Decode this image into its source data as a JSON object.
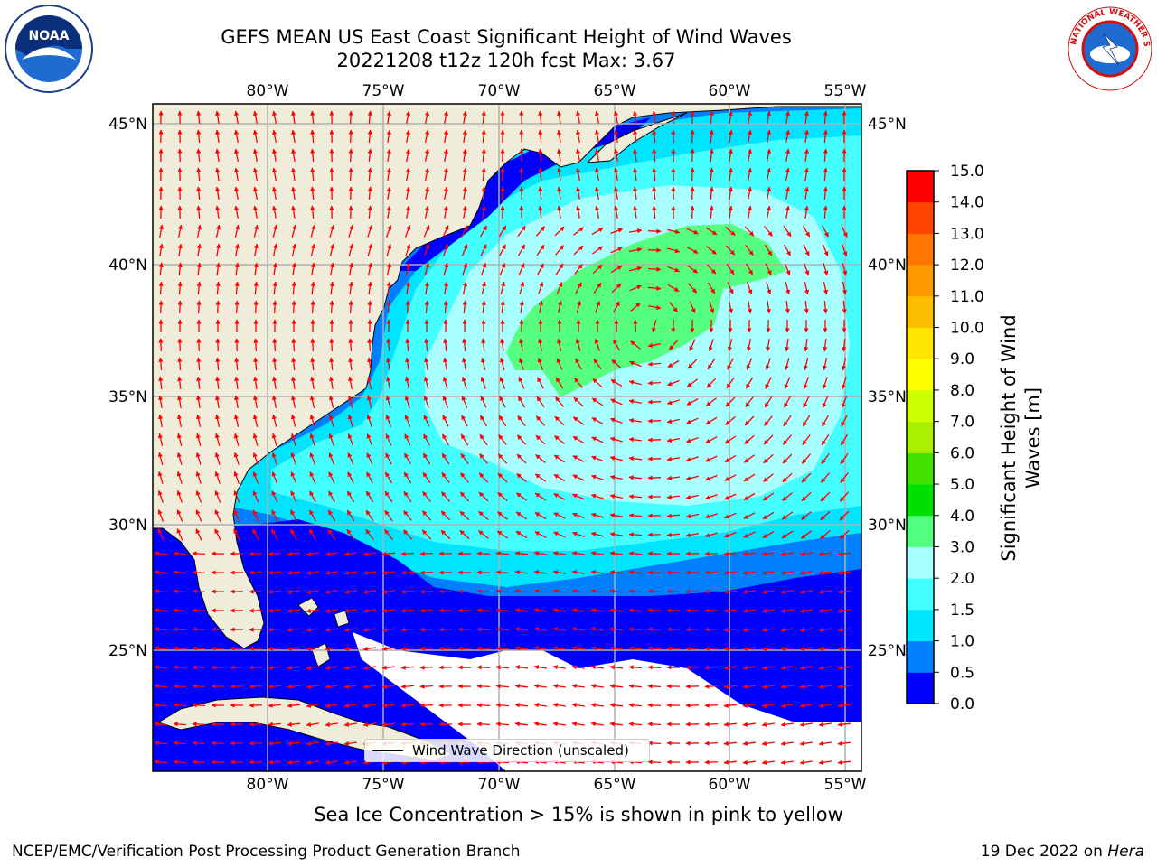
{
  "title": {
    "line1": "GEFS MEAN US East Coast Significant Height of Wind Waves",
    "line2": "20221208 t12z 120h fcst   Max: 3.67"
  },
  "map": {
    "lon_ticks": [
      "80°W",
      "75°W",
      "70°W",
      "65°W",
      "60°W",
      "55°W"
    ],
    "lat_ticks": [
      "45°N",
      "40°N",
      "35°N",
      "30°N",
      "25°N"
    ],
    "legend": "Wind Wave Direction (unscaled)",
    "arrow_color": "#ff0000",
    "land_color": "#efedd9"
  },
  "colorbar": {
    "label_line1": "Significant Height of Wind",
    "label_line2": "Waves [m]",
    "ticks": [
      "0.0",
      "0.5",
      "1.0",
      "1.5",
      "2.0",
      "3.0",
      "4.0",
      "5.0",
      "6.0",
      "7.0",
      "8.0",
      "9.0",
      "10.0",
      "11.0",
      "12.0",
      "13.0",
      "14.0",
      "15.0"
    ],
    "colors": [
      "#0000ff",
      "#0080ff",
      "#00e5ff",
      "#44ffff",
      "#a8ffff",
      "#55ff7f",
      "#00e000",
      "#44e000",
      "#aaee00",
      "#ccff00",
      "#ffff00",
      "#ffe500",
      "#ffbf00",
      "#ff9900",
      "#ff7700",
      "#ff4400",
      "#ff0000"
    ]
  },
  "footer": {
    "sea_ice_note": "Sea Ice Concentration > 15% is shown in pink to yellow",
    "credit_left": "NCEP/EMC/Verification Post Processing Product Generation Branch",
    "date": "19 Dec 2022 on ",
    "machine": "Hera"
  },
  "logos": {
    "noaa_text": "NOAA",
    "nws_text": "NATIONAL WEATHER SERVICE"
  }
}
